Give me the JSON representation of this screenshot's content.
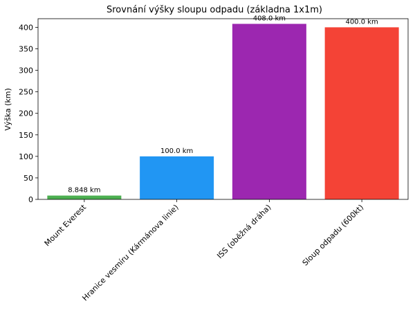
{
  "chart_data": {
    "type": "bar",
    "title": "Srovnání výšky sloupu odpadu (základna 1x1m)",
    "xlabel": "",
    "ylabel": "Výška (km)",
    "ylim": [
      0,
      420
    ],
    "yticks": [
      0,
      50,
      100,
      150,
      200,
      250,
      300,
      350,
      400
    ],
    "grid": false,
    "categories": [
      "Mount Everest",
      "Hranice vesmíru (Kármánova linie)",
      "ISS (oběžná dráha)",
      "Sloup odpadu (600kt)"
    ],
    "values": [
      8.848,
      100.0,
      408.0,
      400.0
    ],
    "data_labels": [
      "8.848 km",
      "100.0 km",
      "408.0 km",
      "400.0 km"
    ],
    "colors": [
      "#4caf50",
      "#2196f3",
      "#9c27b0",
      "#f44336"
    ]
  }
}
